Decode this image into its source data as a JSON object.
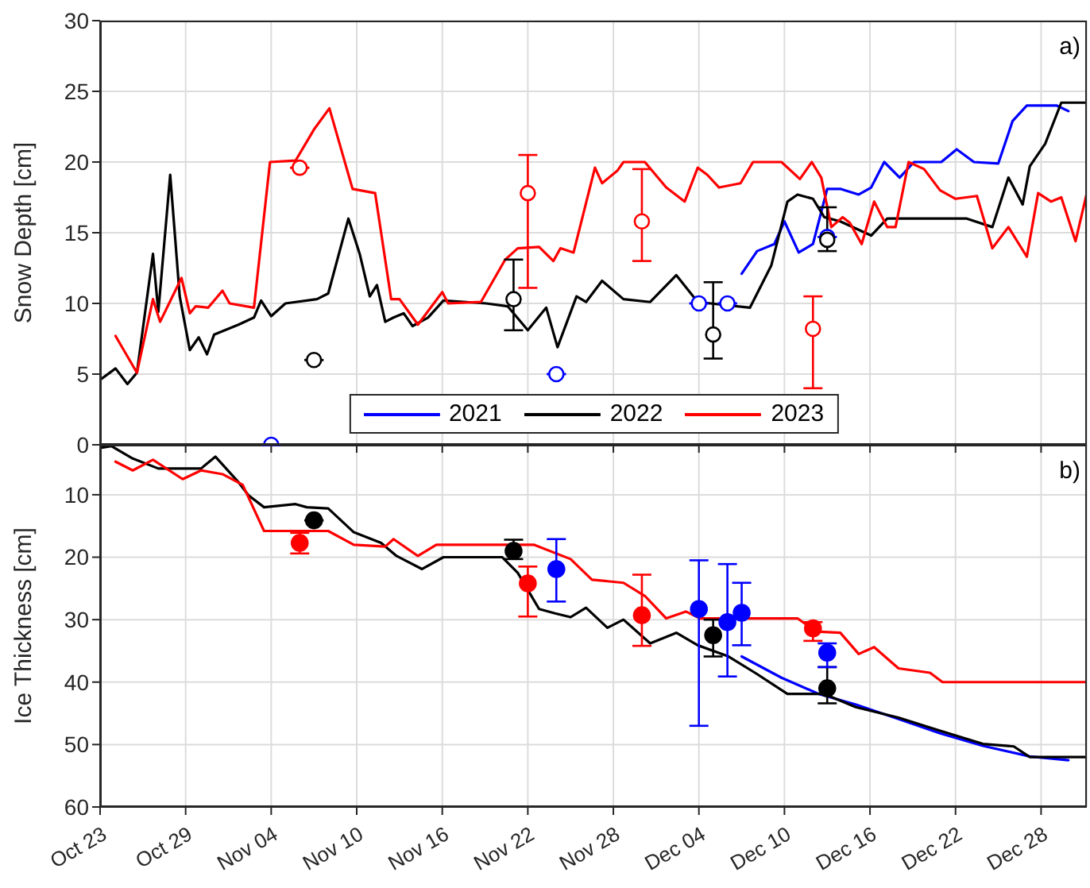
{
  "chart_data": [
    {
      "type": "line",
      "ylabel": "Snow Depth [cm]",
      "annotations": [
        "a)"
      ],
      "xlim": [
        "--10-23T00:00",
        "--12-31T05:00"
      ],
      "xticks": [
        {
          "value": "--10-23",
          "label": null
        },
        {
          "value": "--10-29",
          "label": null
        },
        {
          "value": "--11-04",
          "label": null
        },
        {
          "value": "--11-10",
          "label": null
        },
        {
          "value": "--11-16",
          "label": null
        },
        {
          "value": "--11-22",
          "label": null
        },
        {
          "value": "--11-28",
          "label": null
        },
        {
          "value": "--12-04",
          "label": null
        },
        {
          "value": "--12-10",
          "label": null
        },
        {
          "value": "--12-16",
          "label": null
        },
        {
          "value": "--12-22",
          "label": null
        },
        {
          "value": "--12-28",
          "label": null
        }
      ],
      "ylim": [
        0,
        30
      ],
      "yticks": [
        0,
        5,
        10,
        15,
        20,
        25,
        30
      ],
      "grid": true,
      "legend": "bottom",
      "tick_labels": "y",
      "series": [
        {
          "name": "2021",
          "color": "#0000ff",
          "x": [
            "--12-07T00:00",
            "--12-08T02:00",
            "--12-09T07:00",
            "--12-10T00:00",
            "--12-11T00:00",
            "--12-12T00:00",
            "--12-13T00:00",
            "--12-13T22:00",
            "--12-15T05:00",
            "--12-16T02:00",
            "--12-17T00:00",
            "--12-18T02:00",
            "--12-19T02:00",
            "--12-21T00:00",
            "--12-22T02:00",
            "--12-23T07:00",
            "--12-25T00:00",
            "--12-26T00:00",
            "--12-27T00:00",
            "--12-29T02:00",
            "--12-29T22:00"
          ],
          "values": [
            12.1,
            13.7,
            14.2,
            15.8,
            13.6,
            14.2,
            18.1,
            18.1,
            17.7,
            18.2,
            20,
            18.9,
            20,
            20,
            20.9,
            20,
            19.9,
            22.9,
            24,
            24,
            23.6
          ]
        },
        {
          "name": "2022",
          "color": "#000000",
          "x": [
            "--10-23T00:00",
            "--10-24T02:00",
            "--10-24T22:00",
            "--10-25T14:00",
            "--10-26T17:00",
            "--10-27T02:00",
            "--10-27T22:00",
            "--10-28T14:00",
            "--10-29T07:00",
            "--10-29T22:00",
            "--10-30T12:00",
            "--10-31T00:00",
            "--11-01T17:00",
            "--11-02T19:00",
            "--11-03T07:00",
            "--11-04T00:00",
            "--11-05T00:00",
            "--11-07T05:00",
            "--11-08T00:00",
            "--11-09T10:00",
            "--11-10T05:00",
            "--11-10T22:00",
            "--11-11T10:00",
            "--11-12T00:00",
            "--11-12T14:00",
            "--11-13T07:00",
            "--11-13T22:00",
            "--11-15T00:00",
            "--11-16T02:00",
            "--11-19T02:00",
            "--11-20T14:00",
            "--11-22T00:00",
            "--11-23T07:00",
            "--11-24T02:00",
            "--11-25T10:00",
            "--11-26T02:00",
            "--11-27T05:00",
            "--11-28T17:00",
            "--11-30T14:00",
            "--12-02T10:00",
            "--12-03T22:00",
            "--12-07T14:00",
            "--12-09T02:00",
            "--12-10T05:00",
            "--12-10T22:00",
            "--12-12T00:00",
            "--12-12T19:00",
            "--12-13T22:00",
            "--12-16T02:00",
            "--12-17T05:00",
            "--12-22T19:00",
            "--12-24T14:00",
            "--12-25T17:00",
            "--12-26T17:00",
            "--12-27T05:00",
            "--12-28T07:00",
            "--12-29T10:00",
            "--12-31T05:00"
          ],
          "values": [
            4.6,
            5.4,
            4.3,
            5.1,
            13.5,
            9.4,
            19.1,
            10.5,
            6.7,
            7.6,
            6.4,
            7.8,
            8.5,
            9,
            10.2,
            9.1,
            10,
            10.3,
            10.7,
            16,
            13.5,
            10.5,
            11.3,
            8.7,
            9,
            9.3,
            8.4,
            9,
            10.2,
            10,
            9.8,
            8.1,
            9.7,
            6.9,
            10.5,
            10.1,
            11.6,
            10.3,
            10.1,
            12,
            10.1,
            9.7,
            12.7,
            17.2,
            17.7,
            17.4,
            16.1,
            15.8,
            14.8,
            16,
            16,
            15.4,
            18.9,
            17,
            19.7,
            21.3,
            24.2,
            24.2
          ]
        },
        {
          "name": "2023",
          "color": "#ff0000",
          "x": [
            "--10-24T02:00",
            "--10-25T14:00",
            "--10-26T17:00",
            "--10-27T05:00",
            "--10-28T17:00",
            "--10-29T07:00",
            "--10-29T17:00",
            "--10-30T14:00",
            "--10-31T14:00",
            "--11-01T02:00",
            "--11-02T19:00",
            "--11-03T22:00",
            "--11-05T17:00",
            "--11-07T00:00",
            "--11-08T02:00",
            "--11-09T17:00",
            "--11-11T07:00",
            "--11-12T10:00",
            "--11-13T00:00",
            "--11-14T07:00",
            "--11-16T00:00",
            "--11-16T10:00",
            "--11-18T17:00",
            "--11-20T10:00",
            "--11-21T07:00",
            "--11-22T19:00",
            "--11-23T19:00",
            "--11-24T07:00",
            "--11-25T05:00",
            "--11-26T17:00",
            "--11-27T05:00",
            "--11-28T07:00",
            "--11-28T17:00",
            "--11-30T05:00",
            "--12-01T17:00",
            "--12-03T00:00",
            "--12-03T22:00",
            "--12-04T14:00",
            "--12-05T10:00",
            "--12-06T22:00",
            "--12-07T19:00",
            "--12-09T19:00",
            "--12-11T02:00",
            "--12-11T22:00",
            "--12-12T14:00",
            "--12-13T07:00",
            "--12-14T02:00",
            "--12-14T14:00",
            "--12-15T10:00",
            "--12-16T07:00",
            "--12-17T05:00",
            "--12-17T19:00",
            "--12-18T17:00",
            "--12-19T19:00",
            "--12-20T22:00",
            "--12-22T00:00",
            "--12-23T12:00",
            "--12-24T14:00",
            "--12-25T17:00",
            "--12-27T00:00",
            "--12-27T19:00",
            "--12-28T17:00",
            "--12-29T10:00",
            "--12-30T10:00",
            "--12-31T05:00"
          ],
          "values": [
            7.7,
            5.1,
            10.3,
            8.7,
            11.8,
            9.3,
            9.8,
            9.7,
            10.9,
            10,
            9.7,
            20,
            20.1,
            22.3,
            23.8,
            18.1,
            17.8,
            10.3,
            10.3,
            8.5,
            10.8,
            10,
            10.1,
            13.1,
            13.9,
            14,
            13,
            13.9,
            13.6,
            19.6,
            18.5,
            19.4,
            20,
            20,
            18.2,
            17.2,
            19.6,
            19.1,
            18.2,
            18.5,
            20,
            20,
            18.8,
            20,
            18.9,
            15.4,
            16.1,
            15.7,
            14.2,
            17.2,
            15.4,
            15.4,
            20,
            19.5,
            18,
            17.4,
            17.6,
            13.9,
            15.4,
            13.3,
            17.8,
            17.2,
            17.5,
            14.4,
            17.8
          ]
        },
        {
          "type": "scatter",
          "marker": "circle",
          "color": "#0000ff",
          "x": [
            "--11-04",
            "--11-24",
            "--12-04",
            "--12-06",
            "--12-13"
          ],
          "values": [
            0,
            5,
            10,
            10,
            14.7
          ],
          "errors": [
            null,
            null,
            null,
            null,
            null
          ]
        },
        {
          "type": "scatter",
          "marker": "circle",
          "color": "#000000",
          "x": [
            "--11-07",
            "--11-21",
            "--12-05",
            "--12-13"
          ],
          "values": [
            6,
            10.3,
            7.8,
            14.5
          ],
          "errors": [
            null,
            [
              8.1,
              13.1
            ],
            [
              6.1,
              11.5
            ],
            [
              13.7,
              16.8
            ]
          ]
        },
        {
          "type": "scatter",
          "marker": "circle",
          "color": "#ff0000",
          "x": [
            "--11-06",
            "--11-22",
            "--11-30",
            "--12-12"
          ],
          "values": [
            19.6,
            17.8,
            15.8,
            8.2
          ],
          "errors": [
            null,
            [
              11.1,
              20.5
            ],
            [
              13,
              19.5
            ],
            [
              4,
              10.5
            ]
          ]
        }
      ]
    },
    {
      "type": "line",
      "ylabel": "Ice Thickness [cm]",
      "annotations": [
        "b)"
      ],
      "xlim": [
        "--10-23T00:00",
        "--12-31T05:00"
      ],
      "xticks": [
        {
          "value": "--10-23",
          "label": "Oct 23"
        },
        {
          "value": "--10-29",
          "label": "Oct 29"
        },
        {
          "value": "--11-04",
          "label": "Nov 04"
        },
        {
          "value": "--11-10",
          "label": "Nov 10"
        },
        {
          "value": "--11-16",
          "label": "Nov 16"
        },
        {
          "value": "--11-22",
          "label": "Nov 22"
        },
        {
          "value": "--11-28",
          "label": "Nov 28"
        },
        {
          "value": "--12-04",
          "label": "Dec 04"
        },
        {
          "value": "--12-10",
          "label": "Dec 10"
        },
        {
          "value": "--12-16",
          "label": "Dec 16"
        },
        {
          "value": "--12-22",
          "label": "Dec 22"
        },
        {
          "value": "--12-28",
          "label": "Dec 28"
        }
      ],
      "ylim": [
        60,
        2
      ],
      "yticks": [
        10,
        20,
        30,
        40,
        50,
        60
      ],
      "grid": true,
      "series": [
        {
          "color": "#0000ff",
          "x": [
            "--12-07T00:00",
            "--12-09T19:00",
            "--12-12T10:00",
            "--12-15T00:00",
            "--12-18T00:00",
            "--12-20T22:00",
            "--12-23T22:00",
            "--12-27T05:00",
            "--12-29T22:00"
          ],
          "values": [
            35.9,
            39.3,
            41.9,
            43.6,
            45.9,
            48.2,
            50.2,
            51.9,
            52.5
          ]
        },
        {
          "color": "#000000",
          "x": [
            "--10-23T00:00",
            "--10-23T19:00",
            "--10-25T07:00",
            "--10-27T02:00",
            "--10-30T02:00",
            "--10-31T02:00",
            "--11-01T17:00",
            "--11-02T10:00",
            "--11-03T12:00",
            "--11-05T17:00",
            "--11-06T12:00",
            "--11-08T00:00",
            "--11-09T19:00",
            "--11-11T17:00",
            "--11-12T19:00",
            "--11-14T14:00",
            "--11-16T02:00",
            "--11-20T05:00",
            "--11-21T07:00",
            "--11-22T19:00",
            "--11-23T22:00",
            "--11-25T00:00",
            "--11-26T02:00",
            "--11-27T14:00",
            "--11-28T17:00",
            "--11-30T14:00",
            "--12-02T10:00",
            "--12-03T22:00",
            "--12-06T02:00",
            "--12-08T00:00",
            "--12-10T05:00",
            "--12-12T19:00",
            "--12-15T00:00",
            "--12-18T00:00",
            "--12-20T22:00",
            "--12-23T22:00",
            "--12-26T02:00",
            "--12-27T05:00",
            "--12-31T05:00"
          ],
          "values": [
            2.5,
            2.2,
            4.2,
            5.8,
            5.8,
            3.9,
            8,
            10.1,
            12,
            11.5,
            12,
            12.2,
            16,
            17.7,
            19.8,
            21.9,
            20,
            20,
            22.5,
            28.3,
            29,
            29.6,
            28.1,
            31.3,
            30,
            33.8,
            32.1,
            34.1,
            35.9,
            38.6,
            41.9,
            41.9,
            44,
            45.7,
            47.8,
            49.9,
            50.3,
            52,
            52
          ]
        },
        {
          "color": "#ff0000",
          "x": [
            "--10-24T02:00",
            "--10-25T07:00",
            "--10-26T17:00",
            "--10-28T19:00",
            "--10-30T02:00",
            "--10-31T14:00",
            "--11-02T00:00",
            "--11-03T12:00",
            "--11-08T00:00",
            "--11-09T19:00",
            "--11-12T00:00",
            "--11-12T14:00",
            "--11-14T07:00",
            "--11-15T14:00",
            "--11-22T10:00",
            "--11-25T00:00",
            "--11-26T12:00",
            "--11-28T17:00",
            "--11-30T05:00",
            "--12-01T17:00",
            "--12-03T02:00",
            "--12-04T02:00",
            "--12-10T22:00",
            "--12-12T05:00",
            "--12-13T22:00",
            "--12-15T05:00",
            "--12-16T07:00",
            "--12-18T00:00",
            "--12-20T05:00",
            "--12-21T02:00",
            "--12-31T05:00"
          ],
          "values": [
            4.7,
            6.1,
            4.4,
            7.5,
            6.1,
            6.7,
            8.4,
            15.8,
            15.8,
            18,
            18.3,
            17.1,
            19.8,
            18,
            18,
            20.3,
            23.6,
            24.1,
            26.2,
            29.8,
            28.7,
            29.8,
            29.8,
            31.9,
            32.1,
            35.5,
            34.4,
            37.8,
            38.5,
            40,
            40
          ]
        },
        {
          "type": "scatter",
          "marker": "circle",
          "color": "#000000",
          "x": [
            "--11-07",
            "--11-21",
            "--12-05",
            "--12-13"
          ],
          "values": [
            14.1,
            19,
            32.5,
            41
          ],
          "errors": [
            null,
            [
              17.2,
              20.3
            ],
            [
              30,
              35.9
            ],
            [
              37.6,
              43.4
            ]
          ]
        },
        {
          "type": "scatter",
          "marker": "circle",
          "color": "#ff0000",
          "x": [
            "--11-06",
            "--11-22",
            "--11-30",
            "--12-12"
          ],
          "values": [
            17.7,
            24.2,
            29.3,
            31.4
          ],
          "errors": [
            [
              16.1,
              19.4
            ],
            [
              21.5,
              29.5
            ],
            [
              22.8,
              34.2
            ],
            [
              30.4,
              33.4
            ]
          ]
        },
        {
          "type": "scatter",
          "marker": "circle",
          "color": "#0000ff",
          "x": [
            "--11-24",
            "--12-04",
            "--12-06",
            "--12-07",
            "--12-13"
          ],
          "values": [
            21.9,
            28.3,
            30.4,
            28.9,
            35.3
          ],
          "errors": [
            [
              17.1,
              27.1
            ],
            [
              20.5,
              47
            ],
            [
              21.1,
              39.1
            ],
            [
              24.1,
              34.1
            ],
            [
              33.8,
              37.6
            ]
          ]
        }
      ]
    }
  ]
}
